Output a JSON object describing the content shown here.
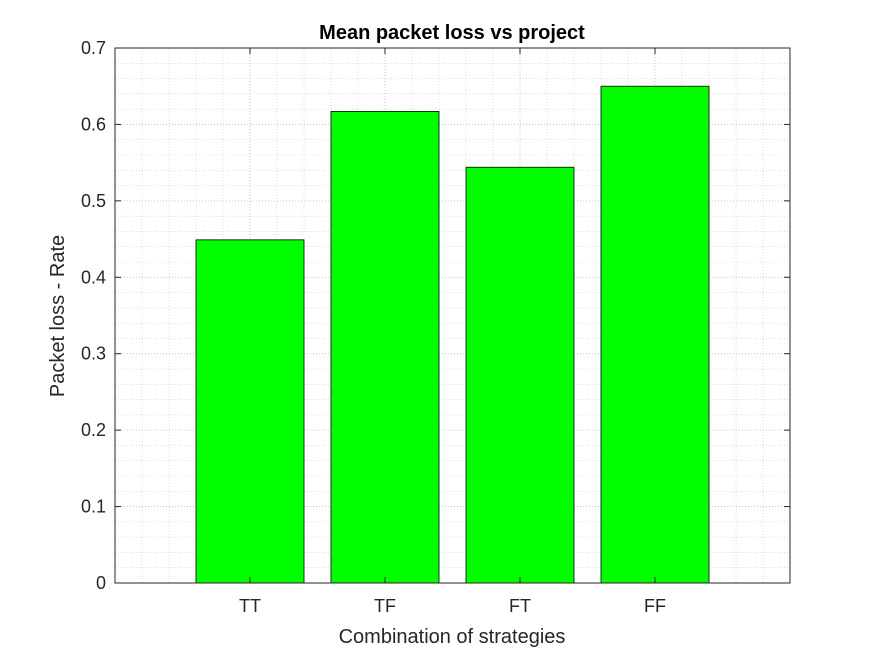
{
  "chart_data": {
    "type": "bar",
    "title": "Mean packet loss vs project",
    "xlabel": "Combination of strategies",
    "ylabel": "Packet loss - Rate",
    "categories": [
      "TT",
      "TF",
      "FT",
      "FF"
    ],
    "values": [
      0.449,
      0.617,
      0.544,
      0.65
    ],
    "ylim": [
      0,
      0.7
    ],
    "xlim": [
      0,
      5
    ],
    "yticks": [
      "0",
      "0.1",
      "0.2",
      "0.3",
      "0.4",
      "0.5",
      "0.6",
      "0.7"
    ],
    "grid": true,
    "minor_grid": true,
    "bar_color": "#00ff00",
    "bar_edge_color": "#000000",
    "axis_color": "#262626",
    "grid_color": "#c8c8c8"
  }
}
